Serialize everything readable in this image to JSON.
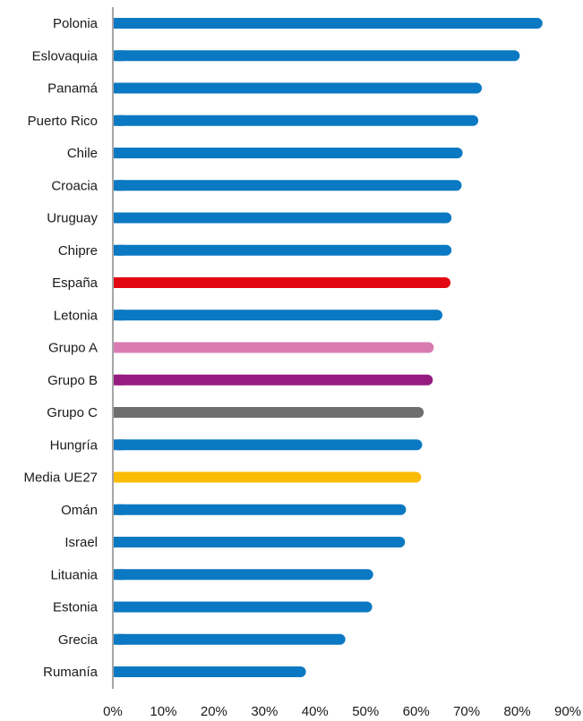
{
  "chart_data": {
    "type": "bar",
    "orientation": "horizontal",
    "categories": [
      "Polonia",
      "Eslovaquia",
      "Panamá",
      "Puerto Rico",
      "Chile",
      "Croacia",
      "Uruguay",
      "Chipre",
      "España",
      "Letonia",
      "Grupo A",
      "Grupo B",
      "Grupo C",
      "Hungría",
      "Media UE27",
      "Omán",
      "Israel",
      "Lituania",
      "Estonia",
      "Grecia",
      "Rumanía"
    ],
    "values": [
      85,
      80.5,
      73,
      72.3,
      69.2,
      69,
      67,
      67,
      66.8,
      65.2,
      63.5,
      63.3,
      61.5,
      61.2,
      61,
      58,
      57.8,
      51.5,
      51.3,
      46,
      38.2
    ],
    "bar_colors": [
      "#0a78c2",
      "#0a78c2",
      "#0a78c2",
      "#0a78c2",
      "#0a78c2",
      "#0a78c2",
      "#0a78c2",
      "#0a78c2",
      "#e20613",
      "#0a78c2",
      "#d97bb2",
      "#951b81",
      "#6e6e6e",
      "#0a78c2",
      "#fbbc04",
      "#0a78c2",
      "#0a78c2",
      "#0a78c2",
      "#0a78c2",
      "#0a78c2",
      "#0a78c2"
    ],
    "x_ticks": [
      "0%",
      "10%",
      "20%",
      "30%",
      "40%",
      "50%",
      "60%",
      "70%",
      "80%",
      "90%"
    ],
    "xlim": [
      0,
      90
    ],
    "grid": false,
    "axis_color": "#a6a6a6"
  }
}
